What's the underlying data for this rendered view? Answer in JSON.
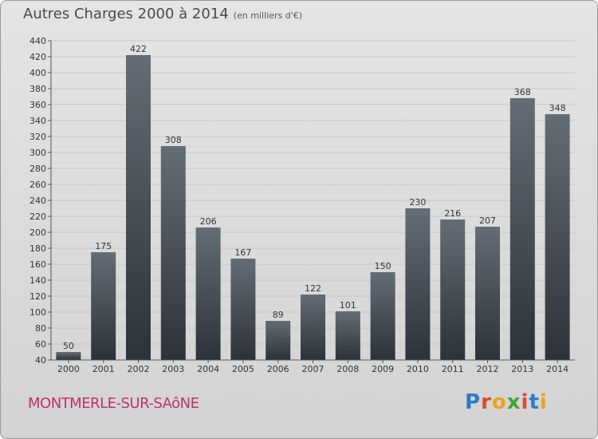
{
  "chart_data": {
    "type": "bar",
    "title": "Autres Charges 2000 à 2014",
    "subtitle": "(en milliers d'€)",
    "categories": [
      "2000",
      "2001",
      "2002",
      "2003",
      "2004",
      "2005",
      "2006",
      "2007",
      "2008",
      "2009",
      "2010",
      "2011",
      "2012",
      "2013",
      "2014"
    ],
    "values": [
      50,
      175,
      422,
      308,
      206,
      167,
      89,
      122,
      101,
      150,
      230,
      216,
      207,
      368,
      348
    ],
    "ylim": [
      40,
      440
    ],
    "yticks": [
      40,
      60,
      80,
      100,
      120,
      140,
      160,
      180,
      200,
      220,
      240,
      260,
      280,
      300,
      320,
      340,
      360,
      380,
      400,
      420,
      440
    ],
    "grid": true,
    "bar_color_top": "#646c75",
    "bar_color_bottom": "#2c323a"
  },
  "footer": {
    "town": "MONTMERLE-SUR-SAôNE",
    "brand_letters": [
      "P",
      "r",
      "o",
      "x",
      "i",
      "t",
      "i"
    ]
  }
}
